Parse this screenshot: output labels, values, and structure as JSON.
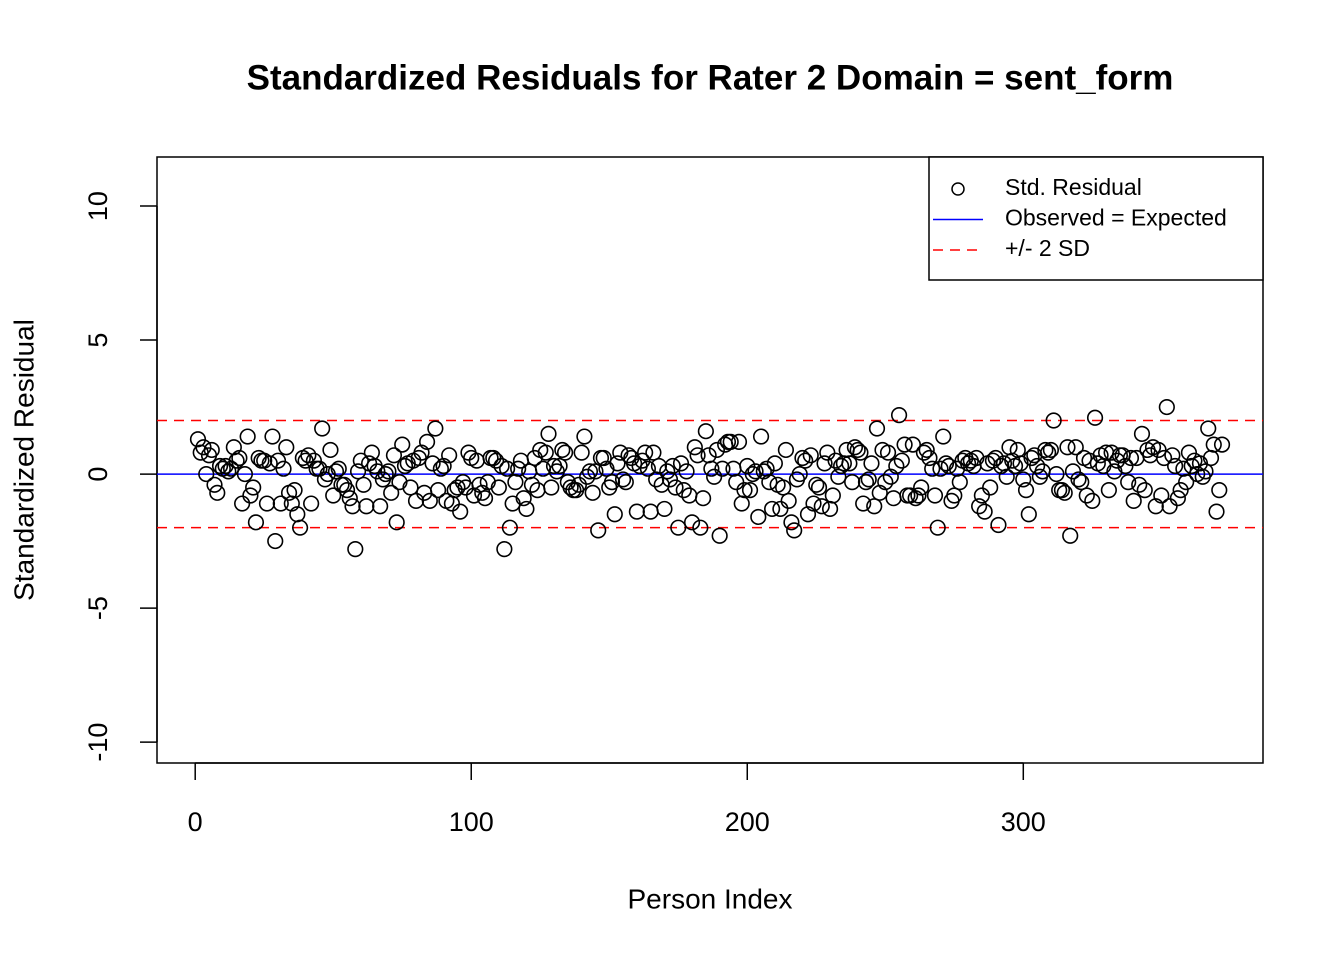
{
  "chart_data": {
    "type": "scatter",
    "title": "Standardized Residuals for Rater 2 Domain = sent_form",
    "x_label": "Person Index",
    "y_label": "Standardized Residual",
    "xlim": [
      -13.84,
      386.84
    ],
    "ylim": [
      -10.78,
      11.83
    ],
    "xticks": [
      0,
      100,
      200,
      300
    ],
    "yticks": [
      -10,
      -5,
      0,
      5,
      10
    ],
    "legend_position": "topright",
    "series": [
      {
        "name": "Std. Residual",
        "color": "#000000",
        "x": [
          1,
          2,
          3,
          4,
          5,
          6,
          7,
          8,
          9,
          10,
          11,
          12,
          13,
          14,
          15,
          16,
          17,
          18,
          19,
          20,
          21,
          22,
          23,
          24,
          25,
          26,
          27,
          28,
          29,
          30,
          31,
          32,
          33,
          34,
          35,
          36,
          37,
          38,
          39,
          40,
          41,
          42,
          43,
          44,
          45,
          46,
          47,
          48,
          49,
          50,
          51,
          52,
          53,
          54,
          55,
          56,
          57,
          58,
          59,
          60,
          61,
          62,
          63,
          64,
          65,
          66,
          67,
          68,
          69,
          70,
          71,
          72,
          73,
          74,
          75,
          76,
          77,
          78,
          79,
          80,
          81,
          82,
          83,
          84,
          85,
          86,
          87,
          88,
          89,
          90,
          91,
          92,
          93,
          94,
          95,
          96,
          97,
          98,
          99,
          100,
          101,
          102,
          103,
          104,
          105,
          106,
          107,
          108,
          109,
          110,
          111,
          112,
          113,
          114,
          115,
          116,
          117,
          118,
          119,
          120,
          121,
          122,
          123,
          124,
          125,
          126,
          127,
          128,
          129,
          130,
          131,
          132,
          133,
          134,
          135,
          136,
          137,
          138,
          139,
          140,
          141,
          142,
          143,
          144,
          145,
          146,
          147,
          148,
          149,
          150,
          151,
          152,
          153,
          154,
          155,
          156,
          157,
          158,
          159,
          160,
          161,
          162,
          163,
          164,
          165,
          166,
          167,
          168,
          169,
          170,
          171,
          172,
          173,
          174,
          175,
          176,
          177,
          178,
          179,
          180,
          181,
          182,
          183,
          184,
          185,
          186,
          187,
          188,
          189,
          190,
          191,
          192,
          193,
          194,
          195,
          196,
          197,
          198,
          199,
          200,
          201,
          202,
          203,
          204,
          205,
          206,
          207,
          208,
          209,
          210,
          211,
          212,
          213,
          214,
          215,
          216,
          217,
          218,
          219,
          220,
          221,
          222,
          223,
          224,
          225,
          226,
          227,
          228,
          229,
          230,
          231,
          232,
          233,
          234,
          235,
          236,
          237,
          238,
          239,
          240,
          241,
          242,
          243,
          244,
          245,
          246,
          247,
          248,
          249,
          250,
          251,
          252,
          253,
          254,
          255,
          256,
          257,
          258,
          259,
          260,
          261,
          262,
          263,
          264,
          265,
          266,
          267,
          268,
          269,
          270,
          271,
          272,
          273,
          274,
          275,
          276,
          277,
          278,
          279,
          280,
          281,
          282,
          283,
          284,
          285,
          286,
          287,
          288,
          289,
          290,
          291,
          292,
          293,
          294,
          295,
          296,
          297,
          298,
          299,
          300,
          301,
          302,
          303,
          304,
          305,
          306,
          307,
          308,
          309,
          310,
          311,
          312,
          313,
          314,
          315,
          316,
          317,
          318,
          319,
          320,
          321,
          322,
          323,
          324,
          325,
          326,
          327,
          328,
          329,
          330,
          331,
          332,
          333,
          334,
          335,
          336,
          337,
          338,
          339,
          340,
          341,
          342,
          343,
          344,
          345,
          346,
          347,
          348,
          349,
          350,
          351,
          352,
          353,
          354,
          355,
          356,
          357,
          358,
          359,
          360,
          361,
          362,
          363,
          364,
          365,
          366,
          367,
          368,
          369,
          370,
          371,
          372
        ],
        "values": [
          1.3,
          0.8,
          1.0,
          0.0,
          0.7,
          0.9,
          -0.4,
          -0.7,
          0.3,
          0.2,
          0.3,
          0.1,
          0.2,
          1.0,
          0.5,
          0.6,
          -1.1,
          0.0,
          1.4,
          -0.8,
          -0.5,
          -1.8,
          0.6,
          0.5,
          0.5,
          -1.1,
          0.4,
          1.4,
          -2.5,
          0.5,
          -1.1,
          0.2,
          1.0,
          -0.7,
          -1.1,
          -0.6,
          -1.5,
          -2.0,
          0.6,
          0.5,
          0.7,
          -1.1,
          0.5,
          0.2,
          0.2,
          1.7,
          -0.2,
          0.0,
          0.9,
          -0.8,
          0.1,
          0.2,
          -0.4,
          -0.4,
          -0.6,
          -0.9,
          -1.2,
          -2.8,
          0.1,
          0.5,
          -0.4,
          -1.2,
          0.4,
          0.8,
          0.3,
          0.1,
          -1.2,
          -0.2,
          0.0,
          0.1,
          -0.7,
          0.7,
          -1.8,
          -0.3,
          1.1,
          0.3,
          0.4,
          -0.5,
          0.5,
          -1.0,
          0.6,
          0.8,
          -0.7,
          1.2,
          -1.0,
          0.4,
          1.7,
          -0.6,
          0.2,
          0.3,
          -1.0,
          0.7,
          -1.1,
          -0.6,
          -0.5,
          -1.4,
          -0.3,
          -0.5,
          0.8,
          0.6,
          -0.8,
          0.5,
          -0.4,
          -0.7,
          -0.9,
          -0.3,
          0.6,
          0.6,
          0.5,
          -0.5,
          0.3,
          -2.8,
          0.2,
          -2.0,
          -1.1,
          -0.3,
          0.2,
          0.5,
          -0.9,
          -1.3,
          0.1,
          -0.4,
          0.6,
          -0.6,
          0.9,
          0.2,
          0.8,
          1.5,
          -0.5,
          0.3,
          0.1,
          0.3,
          0.9,
          0.8,
          -0.3,
          -0.5,
          -0.6,
          -0.6,
          -0.4,
          0.8,
          1.4,
          -0.1,
          0.1,
          -0.7,
          0.1,
          -2.1,
          0.6,
          0.6,
          0.2,
          -0.5,
          -0.3,
          -1.5,
          0.4,
          0.8,
          -0.2,
          -0.3,
          0.7,
          0.6,
          0.4,
          -1.4,
          0.3,
          0.5,
          0.8,
          0.2,
          -1.4,
          0.8,
          -0.2,
          0.3,
          -0.4,
          -1.3,
          0.1,
          -0.2,
          0.3,
          -0.5,
          -2.0,
          0.4,
          -0.6,
          0.1,
          -0.8,
          -1.8,
          1.0,
          0.7,
          -2.0,
          -0.9,
          1.6,
          0.7,
          0.2,
          -0.1,
          0.9,
          -2.3,
          0.2,
          1.1,
          1.2,
          1.2,
          0.2,
          -0.3,
          1.2,
          -1.1,
          -0.6,
          0.3,
          -0.6,
          0.0,
          0.1,
          -1.6,
          1.4,
          0.1,
          0.2,
          -0.3,
          -1.3,
          0.4,
          -0.4,
          -1.3,
          -0.5,
          0.9,
          -1.0,
          -1.8,
          -2.1,
          -0.2,
          0.0,
          0.6,
          0.5,
          -1.5,
          0.7,
          -1.1,
          -0.4,
          -0.5,
          -1.2,
          0.4,
          0.8,
          -1.3,
          -0.8,
          0.5,
          -0.1,
          0.3,
          0.4,
          0.9,
          0.4,
          -0.3,
          1.0,
          0.9,
          0.8,
          -1.1,
          -0.3,
          -0.2,
          0.4,
          -1.2,
          1.7,
          -0.7,
          0.9,
          -0.3,
          0.8,
          -0.1,
          -0.9,
          0.3,
          2.2,
          0.5,
          1.1,
          -0.8,
          -0.8,
          1.1,
          -0.9,
          -0.8,
          -0.5,
          0.8,
          0.9,
          0.6,
          0.2,
          -0.8,
          -2.0,
          0.2,
          1.4,
          0.4,
          0.3,
          -1.0,
          -0.8,
          0.2,
          -0.3,
          0.5,
          0.6,
          0.4,
          0.5,
          0.3,
          0.6,
          -1.2,
          -0.8,
          -1.4,
          0.4,
          -0.5,
          0.5,
          0.6,
          -1.9,
          0.3,
          0.4,
          -0.1,
          1.0,
          0.5,
          0.3,
          0.9,
          0.4,
          -0.2,
          -0.6,
          -1.5,
          0.6,
          0.7,
          0.3,
          -0.1,
          0.1,
          0.9,
          0.8,
          0.9,
          2.0,
          0.0,
          -0.6,
          -0.6,
          -0.7,
          1.0,
          -2.3,
          0.1,
          1.0,
          -0.2,
          -0.3,
          0.6,
          -0.8,
          0.5,
          -1.0,
          2.1,
          0.4,
          0.7,
          0.3,
          0.8,
          -0.6,
          0.8,
          0.1,
          0.5,
          0.7,
          0.7,
          0.3,
          -0.3,
          0.6,
          -1.0,
          0.6,
          -0.4,
          1.5,
          -0.6,
          0.9,
          0.7,
          1.0,
          -1.2,
          0.9,
          -0.8,
          0.6,
          2.5,
          -1.2,
          0.7,
          0.3,
          -0.9,
          -0.6,
          0.2,
          -0.3,
          0.8,
          0.3,
          0.5,
          0.0,
          0.4,
          -0.1,
          0.1,
          1.7,
          0.6,
          1.1,
          -1.4,
          -0.6,
          1.1
        ]
      }
    ],
    "reference_lines": [
      {
        "name": "Observed = Expected",
        "color": "#0000ff",
        "dashed": false,
        "values": [
          0
        ]
      },
      {
        "name": "+/- 2 SD",
        "color": "#ff0000",
        "dashed": true,
        "values": [
          2,
          -2
        ]
      }
    ]
  }
}
